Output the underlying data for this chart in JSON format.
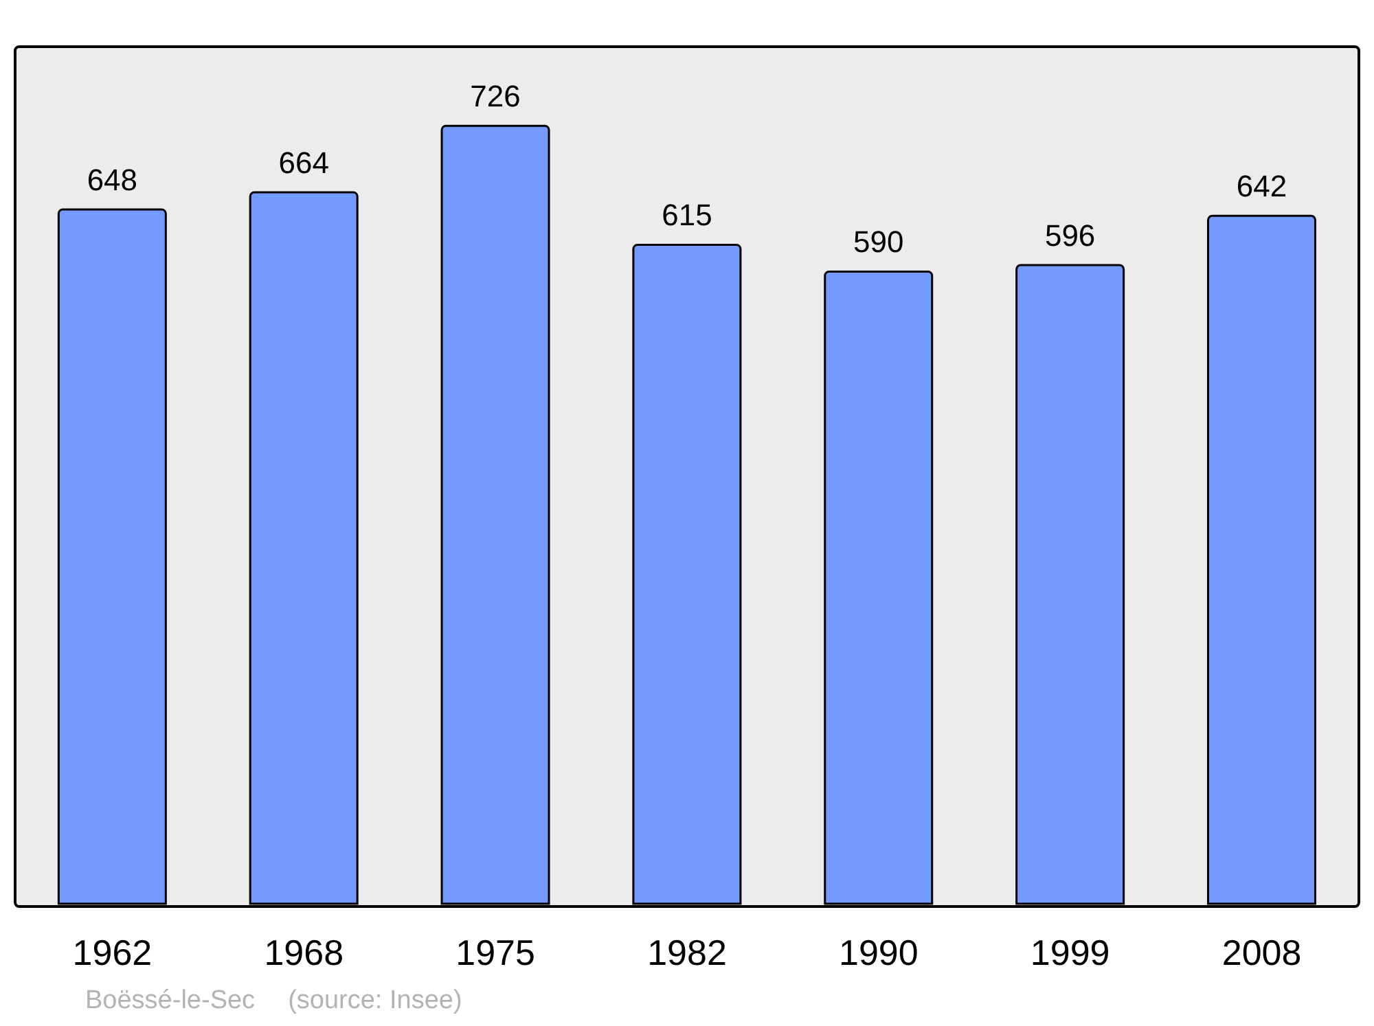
{
  "chart_data": {
    "type": "bar",
    "categories": [
      "1962",
      "1968",
      "1975",
      "1982",
      "1990",
      "1999",
      "2008"
    ],
    "values": [
      648,
      664,
      726,
      615,
      590,
      596,
      642
    ],
    "color": "#7499ff",
    "data_labels": true,
    "annotations": [
      "Boëssé-le-Sec",
      "(source: Insee)"
    ]
  }
}
